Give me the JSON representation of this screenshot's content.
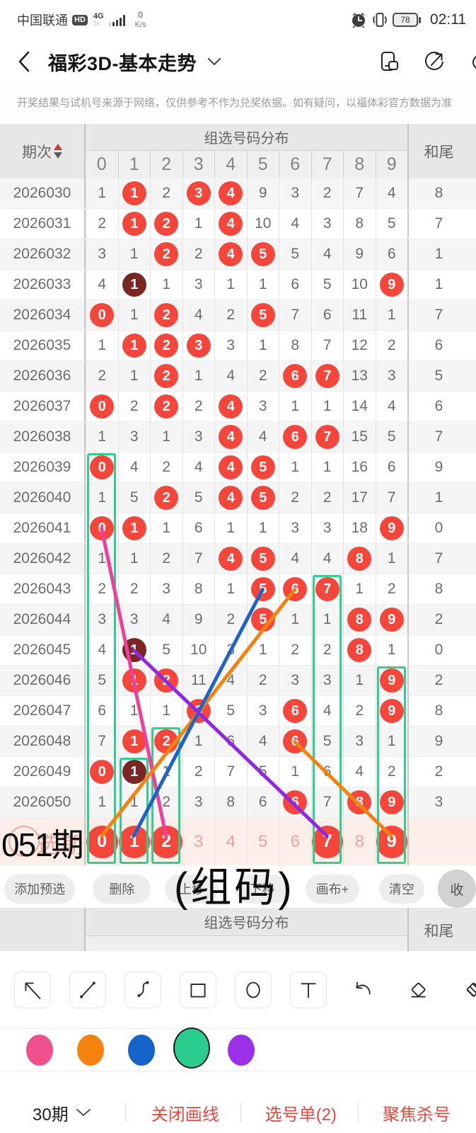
{
  "status_bar": {
    "carrier": "中国联通",
    "badge": "HD",
    "network": "4G",
    "network_sub": "1k",
    "speed_value": "0",
    "speed_unit": "K/s",
    "battery": "78",
    "time": "02:11"
  },
  "nav": {
    "title": "福彩3D-基本走势"
  },
  "notice": "开奖结果与试机号来源于网络，仅供参考不作为兑奖依据。如有疑问，以福体彩官方数据为准",
  "table": {
    "period_header": "期次",
    "group_header": "组选号码分布",
    "tail_header": "和尾",
    "digit_headers": [
      "0",
      "1",
      "2",
      "3",
      "4",
      "5",
      "6",
      "7",
      "8",
      "9"
    ],
    "rows": [
      {
        "period": "2026030",
        "cells": [
          "1",
          "1r",
          "2",
          "3r",
          "4r",
          "9",
          "3",
          "2",
          "7",
          "4"
        ],
        "tail": "8"
      },
      {
        "period": "2026031",
        "cells": [
          "2",
          "1r",
          "2r",
          "1",
          "4r",
          "10",
          "4",
          "3",
          "8",
          "5"
        ],
        "tail": "7"
      },
      {
        "period": "2026032",
        "cells": [
          "3",
          "1",
          "2r",
          "2",
          "4r",
          "5r",
          "5",
          "4",
          "9",
          "6"
        ],
        "tail": "1"
      },
      {
        "period": "2026033",
        "cells": [
          "4",
          "1d",
          "1",
          "3",
          "1",
          "1",
          "6",
          "5",
          "10",
          "9r"
        ],
        "tail": "1"
      },
      {
        "period": "2026034",
        "cells": [
          "0r",
          "1",
          "2r",
          "4",
          "2",
          "5r",
          "7",
          "6",
          "11",
          "1"
        ],
        "tail": "7"
      },
      {
        "period": "2026035",
        "cells": [
          "1",
          "1r",
          "2r",
          "3r",
          "3",
          "1",
          "8",
          "7",
          "12",
          "2"
        ],
        "tail": "6"
      },
      {
        "period": "2026036",
        "cells": [
          "2",
          "1",
          "2r",
          "1",
          "4",
          "2",
          "6r",
          "7r",
          "13",
          "3"
        ],
        "tail": "5"
      },
      {
        "period": "2026037",
        "cells": [
          "0r",
          "2",
          "2r",
          "2",
          "4r",
          "3",
          "1",
          "1",
          "14",
          "4"
        ],
        "tail": "6"
      },
      {
        "period": "2026038",
        "cells": [
          "1",
          "3",
          "1",
          "3",
          "4r",
          "4",
          "6r",
          "7r",
          "15",
          "5"
        ],
        "tail": "7"
      },
      {
        "period": "2026039",
        "cells": [
          "0r",
          "4",
          "2",
          "4",
          "4r",
          "5r",
          "1",
          "1",
          "16",
          "6"
        ],
        "tail": "9"
      },
      {
        "period": "2026040",
        "cells": [
          "1",
          "5",
          "2r",
          "5",
          "4r",
          "5r",
          "2",
          "2",
          "17",
          "7"
        ],
        "tail": "1"
      },
      {
        "period": "2026041",
        "cells": [
          "0r",
          "1r",
          "1",
          "6",
          "1",
          "1",
          "3",
          "3",
          "18",
          "9r"
        ],
        "tail": "0"
      },
      {
        "period": "2026042",
        "cells": [
          "1",
          "1",
          "2",
          "7",
          "4r",
          "5r",
          "4",
          "4",
          "8r",
          "1"
        ],
        "tail": "7"
      },
      {
        "period": "2026043",
        "cells": [
          "2",
          "2",
          "3",
          "8",
          "1",
          "5r",
          "6r",
          "7r",
          "1",
          "2"
        ],
        "tail": "8"
      },
      {
        "period": "2026044",
        "cells": [
          "3",
          "3",
          "4",
          "9",
          "2",
          "5r",
          "1",
          "1",
          "8r",
          "9r"
        ],
        "tail": "2"
      },
      {
        "period": "2026045",
        "cells": [
          "4",
          "1d",
          "5",
          "10",
          "3",
          "1",
          "2",
          "2",
          "8r",
          "1"
        ],
        "tail": "0"
      },
      {
        "period": "2026046",
        "cells": [
          "5",
          "1r",
          "2r",
          "11",
          "4",
          "2",
          "3",
          "3",
          "1",
          "9r"
        ],
        "tail": "2"
      },
      {
        "period": "2026047",
        "cells": [
          "6",
          "1",
          "1",
          "3r",
          "5",
          "3",
          "6r",
          "4",
          "2",
          "9r"
        ],
        "tail": "8"
      },
      {
        "period": "2026048",
        "cells": [
          "7",
          "1r",
          "2r",
          "1",
          "6",
          "4",
          "6r",
          "5",
          "3",
          "1"
        ],
        "tail": "9"
      },
      {
        "period": "2026049",
        "cells": [
          "0r",
          "1d",
          "1",
          "2",
          "7",
          "5",
          "1",
          "6",
          "4",
          "2"
        ],
        "tail": "2"
      },
      {
        "period": "2026050",
        "cells": [
          "1",
          "1",
          "2",
          "3",
          "8",
          "6",
          "6r",
          "7",
          "8r",
          "9r"
        ],
        "tail": "3"
      }
    ],
    "next_row": {
      "underlay_label": "选期",
      "cells": [
        "0r",
        "1r",
        "2r",
        "3p",
        "4p",
        "5p",
        "6p",
        "7r",
        "8p",
        "9r"
      ],
      "tail": ""
    }
  },
  "annotations": {
    "text_051": "051期",
    "text_group": "(组码)",
    "highlight_boxes": [
      {
        "digit": 0,
        "from_period": "2026039"
      },
      {
        "digit": 1,
        "from_period": "2026049"
      },
      {
        "digit": 2,
        "from_period": "2026048"
      },
      {
        "digit": 7,
        "from_period": "2026043"
      },
      {
        "digit": 9,
        "from_period": "2026046"
      }
    ],
    "lines": [
      {
        "color": "#ee3f9b",
        "from_period": "2026041",
        "from_digit": 0,
        "to_digit": 2
      },
      {
        "color": "#f5820d",
        "from_period": "2026043",
        "from_digit": 6,
        "to_digit": 0
      },
      {
        "color": "#1e63c8",
        "from_period": "2026043",
        "from_digit": 5,
        "to_digit": 1
      },
      {
        "color": "#9127e3",
        "from_period": "2026045",
        "from_digit": 1,
        "to_digit": 7
      },
      {
        "color": "#f5820d",
        "from_period": "2026048",
        "from_digit": 6,
        "to_digit": 9
      }
    ]
  },
  "action_buttons": [
    {
      "label": "添加预选",
      "name": "add-preselect"
    },
    {
      "label": "删除",
      "name": "delete"
    },
    {
      "label": "上移",
      "name": "move-up"
    },
    {
      "label": "下移",
      "name": "move-down"
    },
    {
      "label": "画布+",
      "name": "canvas-plus"
    },
    {
      "label": "清空",
      "name": "clear"
    },
    {
      "label": "收",
      "name": "collapse"
    }
  ],
  "second_header": {
    "group_header": "组选号码分布",
    "tail_header": "和尾"
  },
  "draw_toolbar": {
    "tools": [
      "arrow",
      "line",
      "curve",
      "rect",
      "circle",
      "text",
      "undo",
      "eraser",
      "eraser-clear"
    ]
  },
  "palette": {
    "colors": [
      {
        "name": "pink",
        "hex": "#f0508c",
        "selected": false
      },
      {
        "name": "orange",
        "hex": "#f5820d",
        "selected": false
      },
      {
        "name": "blue",
        "hex": "#1565c8",
        "selected": false
      },
      {
        "name": "green",
        "hex": "#2bcd8d",
        "selected": true
      },
      {
        "name": "purple",
        "hex": "#9b30e8",
        "selected": false
      }
    ]
  },
  "bottom_bar": {
    "period_count": "30期",
    "actions": [
      {
        "label": "关闭画线",
        "name": "close-drawing"
      },
      {
        "label": "选号单(2)",
        "name": "selection-list"
      },
      {
        "label": "聚焦杀号",
        "name": "focus-kill"
      }
    ]
  }
}
